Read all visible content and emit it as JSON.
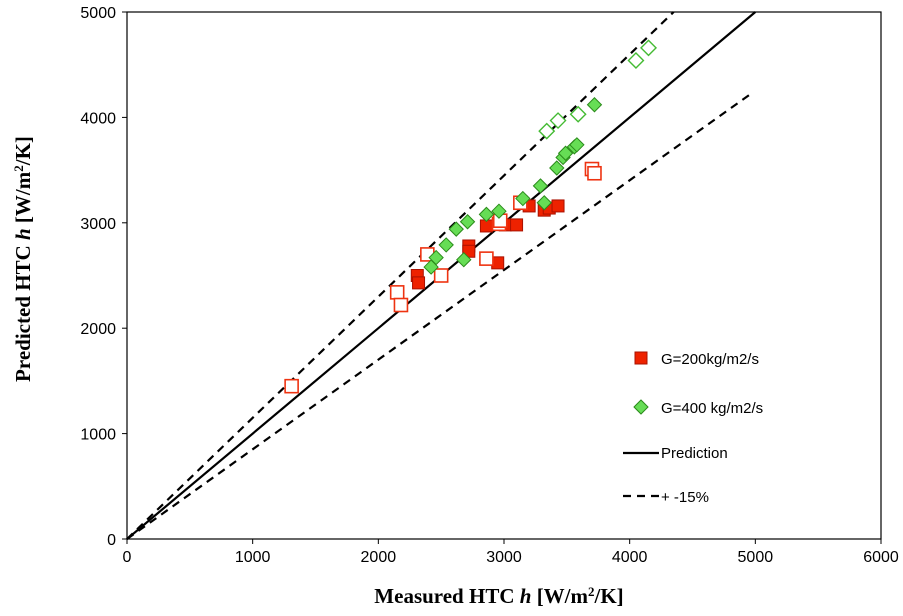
{
  "chart_data": {
    "type": "scatter",
    "title": "",
    "xlabel": "Measured HTC h  [W/m²/K]",
    "ylabel": "Predicted HTC h [W/m²/K]",
    "xlabel_parts": {
      "pre": "Measured HTC ",
      "var": "h",
      "post": "  [W/m",
      "sup": "2",
      "tail": "/K]"
    },
    "ylabel_parts": {
      "pre": "Predicted HTC ",
      "var": "h",
      "post": " [W/m",
      "sup": "2",
      "tail": "/K]"
    },
    "xlim": [
      0,
      6000
    ],
    "ylim": [
      0,
      5000
    ],
    "xticks": [
      0,
      1000,
      2000,
      3000,
      4000,
      5000,
      6000
    ],
    "yticks": [
      0,
      1000,
      2000,
      3000,
      4000,
      5000
    ],
    "grid": false,
    "legend_position": "right",
    "series": [
      {
        "name": "G=200kg/m2/s",
        "marker": "square",
        "color": "#ee2200",
        "stroke": "#aa1100",
        "points": [
          [
            2310,
            2500
          ],
          [
            2320,
            2430
          ],
          [
            2720,
            2780
          ],
          [
            2720,
            2730
          ],
          [
            2860,
            2970
          ],
          [
            2950,
            2620
          ],
          [
            3010,
            2980
          ],
          [
            3100,
            2980
          ],
          [
            3200,
            3160
          ],
          [
            3320,
            3120
          ],
          [
            3360,
            3140
          ],
          [
            3430,
            3160
          ]
        ]
      },
      {
        "name": "",
        "marker": "square-open",
        "color": "#ee3311",
        "points": [
          [
            1310,
            1450
          ],
          [
            2150,
            2340
          ],
          [
            2180,
            2220
          ],
          [
            2390,
            2700
          ],
          [
            2500,
            2500
          ],
          [
            2860,
            2660
          ],
          [
            2960,
            2990
          ],
          [
            2970,
            3020
          ],
          [
            3130,
            3190
          ],
          [
            3700,
            3510
          ],
          [
            3720,
            3470
          ]
        ]
      },
      {
        "name": "G=400 kg/m2/s",
        "marker": "diamond",
        "color": "#66dd55",
        "stroke": "#2a8a1a",
        "points": [
          [
            2420,
            2580
          ],
          [
            2460,
            2670
          ],
          [
            2540,
            2790
          ],
          [
            2620,
            2940
          ],
          [
            2680,
            2650
          ],
          [
            2710,
            3010
          ],
          [
            2860,
            3080
          ],
          [
            2960,
            3110
          ],
          [
            3150,
            3230
          ],
          [
            3290,
            3350
          ],
          [
            3320,
            3190
          ],
          [
            3420,
            3520
          ],
          [
            3470,
            3620
          ],
          [
            3490,
            3660
          ],
          [
            3560,
            3720
          ],
          [
            3580,
            3740
          ],
          [
            3720,
            4120
          ]
        ]
      },
      {
        "name": "",
        "marker": "diamond-open",
        "color": "#44bb33",
        "points": [
          [
            3340,
            3870
          ],
          [
            3430,
            3970
          ],
          [
            3590,
            4030
          ],
          [
            4050,
            4540
          ],
          [
            4150,
            4660
          ]
        ]
      }
    ],
    "lines": [
      {
        "name": "Prediction",
        "style": "solid",
        "points": [
          [
            0,
            0
          ],
          [
            5000,
            5000
          ]
        ]
      },
      {
        "name": "+ -15%",
        "style": "dashed",
        "points": [
          [
            0,
            0
          ],
          [
            4350,
            5000
          ]
        ]
      },
      {
        "name": "",
        "style": "dashed",
        "points": [
          [
            0,
            0
          ],
          [
            4960,
            4220
          ]
        ]
      }
    ],
    "legend": [
      {
        "label": "G=200kg/m2/s",
        "kind": "square"
      },
      {
        "label": "G=400 kg/m2/s",
        "kind": "diamond"
      },
      {
        "label": "Prediction",
        "kind": "solid-line"
      },
      {
        "label": "+ -15%",
        "kind": "dashed-line"
      }
    ]
  }
}
